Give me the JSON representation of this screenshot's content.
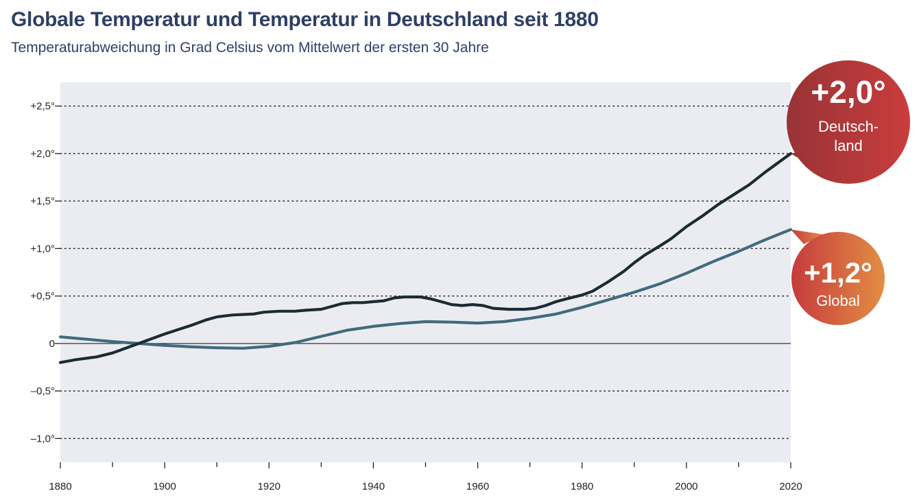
{
  "header": {
    "title": "Globale Temperatur und Temperatur in Deutschland seit 1880",
    "subtitle": "Temperaturabweichung in Grad Celsius vom Mittelwert der ersten 30 Jahre"
  },
  "chart_data": {
    "type": "line",
    "title": "Globale Temperatur und Temperatur in Deutschland seit 1880",
    "subtitle": "Temperaturabweichung in Grad Celsius vom Mittelwert der ersten 30 Jahre",
    "xlabel": "",
    "ylabel": "",
    "xlim": [
      1880,
      2020
    ],
    "ylim": [
      -1.25,
      2.75
    ],
    "grid": true,
    "x_ticks": [
      1880,
      1890,
      1900,
      1910,
      1920,
      1930,
      1940,
      1950,
      1960,
      1970,
      1980,
      1990,
      2000,
      2010,
      2020
    ],
    "x_tick_labels": [
      {
        "value": 1880,
        "label": "1880"
      },
      {
        "value": 1900,
        "label": "1900"
      },
      {
        "value": 1920,
        "label": "1920"
      },
      {
        "value": 1940,
        "label": "1940"
      },
      {
        "value": 1960,
        "label": "1960"
      },
      {
        "value": 1980,
        "label": "1980"
      },
      {
        "value": 2000,
        "label": "2000"
      },
      {
        "value": 2020,
        "label": "2020"
      }
    ],
    "y_ticks": [
      {
        "value": 2.5,
        "label": "+2,5°"
      },
      {
        "value": 2.0,
        "label": "+2,0°"
      },
      {
        "value": 1.5,
        "label": "+1,5°"
      },
      {
        "value": 1.0,
        "label": "+1,0°"
      },
      {
        "value": 0.5,
        "label": "+0,5°"
      },
      {
        "value": 0,
        "label": "0"
      },
      {
        "value": -0.5,
        "label": "–0,5°"
      },
      {
        "value": -1.0,
        "label": "–1,0°"
      }
    ],
    "series": [
      {
        "name": "Deutschland",
        "color": "#1c2b33",
        "x": [
          1880,
          1883,
          1887,
          1890,
          1893,
          1895,
          1900,
          1905,
          1908,
          1910,
          1913,
          1917,
          1919,
          1922,
          1925,
          1927,
          1930,
          1932,
          1934,
          1936,
          1938,
          1940,
          1942,
          1944,
          1946,
          1949,
          1951,
          1953,
          1955,
          1957,
          1959,
          1961,
          1963,
          1966,
          1969,
          1971,
          1973,
          1975,
          1977,
          1980,
          1982,
          1985,
          1988,
          1990,
          1992,
          1995,
          1997,
          2000,
          2003,
          2006,
          2010,
          2012,
          2015,
          2017,
          2020
        ],
        "values": [
          -0.2,
          -0.17,
          -0.14,
          -0.1,
          -0.04,
          0.0,
          0.1,
          0.19,
          0.25,
          0.28,
          0.3,
          0.31,
          0.33,
          0.34,
          0.34,
          0.35,
          0.36,
          0.39,
          0.42,
          0.43,
          0.43,
          0.44,
          0.45,
          0.48,
          0.49,
          0.49,
          0.47,
          0.44,
          0.41,
          0.4,
          0.41,
          0.4,
          0.37,
          0.36,
          0.36,
          0.37,
          0.4,
          0.44,
          0.47,
          0.51,
          0.55,
          0.65,
          0.76,
          0.85,
          0.93,
          1.03,
          1.1,
          1.23,
          1.34,
          1.46,
          1.6,
          1.67,
          1.8,
          1.88,
          2.0
        ]
      },
      {
        "name": "Global",
        "color": "#3f6b7d",
        "x": [
          1880,
          1885,
          1890,
          1895,
          1900,
          1905,
          1910,
          1915,
          1920,
          1925,
          1930,
          1935,
          1940,
          1945,
          1950,
          1955,
          1960,
          1965,
          1970,
          1975,
          1980,
          1985,
          1990,
          1995,
          2000,
          2005,
          2010,
          2015,
          2020
        ],
        "values": [
          0.07,
          0.045,
          0.02,
          0.0,
          -0.02,
          -0.035,
          -0.045,
          -0.05,
          -0.03,
          0.01,
          0.075,
          0.14,
          0.18,
          0.21,
          0.23,
          0.225,
          0.215,
          0.23,
          0.265,
          0.31,
          0.38,
          0.46,
          0.54,
          0.63,
          0.74,
          0.86,
          0.97,
          1.09,
          1.2
        ]
      }
    ],
    "annotations": [
      {
        "series": "Deutschland",
        "value_label": "+2,0°",
        "text_line1": "Deutsch-",
        "text_line2": "land",
        "color_from": "#983336",
        "color_to": "#ca3d3d"
      },
      {
        "series": "Global",
        "value_label": "+1,2°",
        "text_line1": "Global",
        "text_line2": "",
        "color_from": "#c63b3c",
        "color_to": "#e28e44"
      }
    ],
    "plot_background": "#ebecf2",
    "legend": "none (inline bubble labels at right)"
  }
}
